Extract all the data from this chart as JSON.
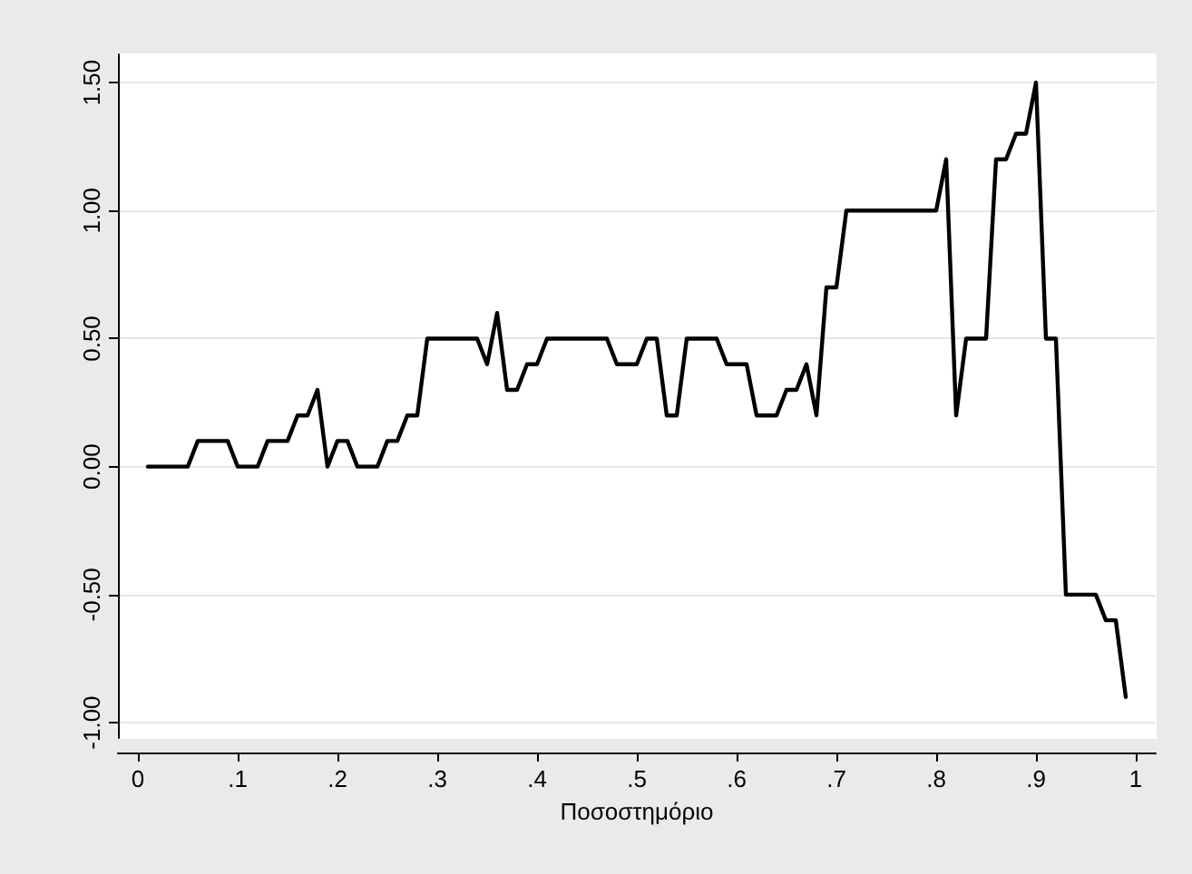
{
  "chart_data": {
    "type": "line",
    "xlabel": "Ποσοστημόριο",
    "x": [
      0.01,
      0.05,
      0.06,
      0.09,
      0.1,
      0.12,
      0.13,
      0.15,
      0.16,
      0.17,
      0.18,
      0.19,
      0.2,
      0.21,
      0.22,
      0.24,
      0.25,
      0.26,
      0.27,
      0.28,
      0.29,
      0.34,
      0.35,
      0.36,
      0.37,
      0.38,
      0.39,
      0.4,
      0.41,
      0.47,
      0.48,
      0.5,
      0.51,
      0.52,
      0.53,
      0.54,
      0.55,
      0.58,
      0.59,
      0.61,
      0.62,
      0.64,
      0.65,
      0.66,
      0.67,
      0.68,
      0.69,
      0.7,
      0.71,
      0.8,
      0.81,
      0.82,
      0.83,
      0.85,
      0.86,
      0.87,
      0.88,
      0.89,
      0.9,
      0.91,
      0.92,
      0.93,
      0.96,
      0.97,
      0.98,
      0.99
    ],
    "series": [
      {
        "color": "#000000",
        "values": [
          0,
          0,
          0.1,
          0.1,
          0,
          0,
          0.1,
          0.1,
          0.2,
          0.2,
          0.3,
          0,
          0.1,
          0.1,
          0,
          0,
          0.1,
          0.1,
          0.2,
          0.2,
          0.5,
          0.5,
          0.4,
          0.6,
          0.3,
          0.3,
          0.4,
          0.4,
          0.5,
          0.5,
          0.4,
          0.4,
          0.5,
          0.5,
          0.2,
          0.2,
          0.5,
          0.5,
          0.4,
          0.4,
          0.2,
          0.2,
          0.3,
          0.3,
          0.4,
          0.2,
          0.7,
          0.7,
          1.0,
          1.0,
          1.2,
          0.2,
          0.5,
          0.5,
          1.2,
          1.2,
          1.3,
          1.3,
          1.5,
          0.5,
          0.5,
          -0.5,
          -0.5,
          -0.6,
          -0.6,
          -0.9
        ]
      }
    ],
    "xlim": [
      -0.02,
      1.02
    ],
    "xticks": [
      {
        "value": 0,
        "label": "0"
      },
      {
        "value": 0.1,
        "label": ".1"
      },
      {
        "value": 0.2,
        "label": ".2"
      },
      {
        "value": 0.3,
        "label": ".3"
      },
      {
        "value": 0.4,
        "label": ".4"
      },
      {
        "value": 0.5,
        "label": ".5"
      },
      {
        "value": 0.6,
        "label": ".6"
      },
      {
        "value": 0.7,
        "label": ".7"
      },
      {
        "value": 0.8,
        "label": ".8"
      },
      {
        "value": 0.9,
        "label": ".9"
      },
      {
        "value": 1,
        "label": "1"
      }
    ],
    "ylim": [
      -1.06,
      1.61
    ],
    "yticks": [
      {
        "value": -1,
        "label": "-1.00"
      },
      {
        "value": -0.5,
        "label": "-0.50"
      },
      {
        "value": 0,
        "label": "0.00"
      },
      {
        "value": 0.5,
        "label": "0.50"
      },
      {
        "value": 1,
        "label": "1.00"
      },
      {
        "value": 1.5,
        "label": "1.50"
      }
    ],
    "grid": "y",
    "marker": "none",
    "line_style": "solid"
  }
}
